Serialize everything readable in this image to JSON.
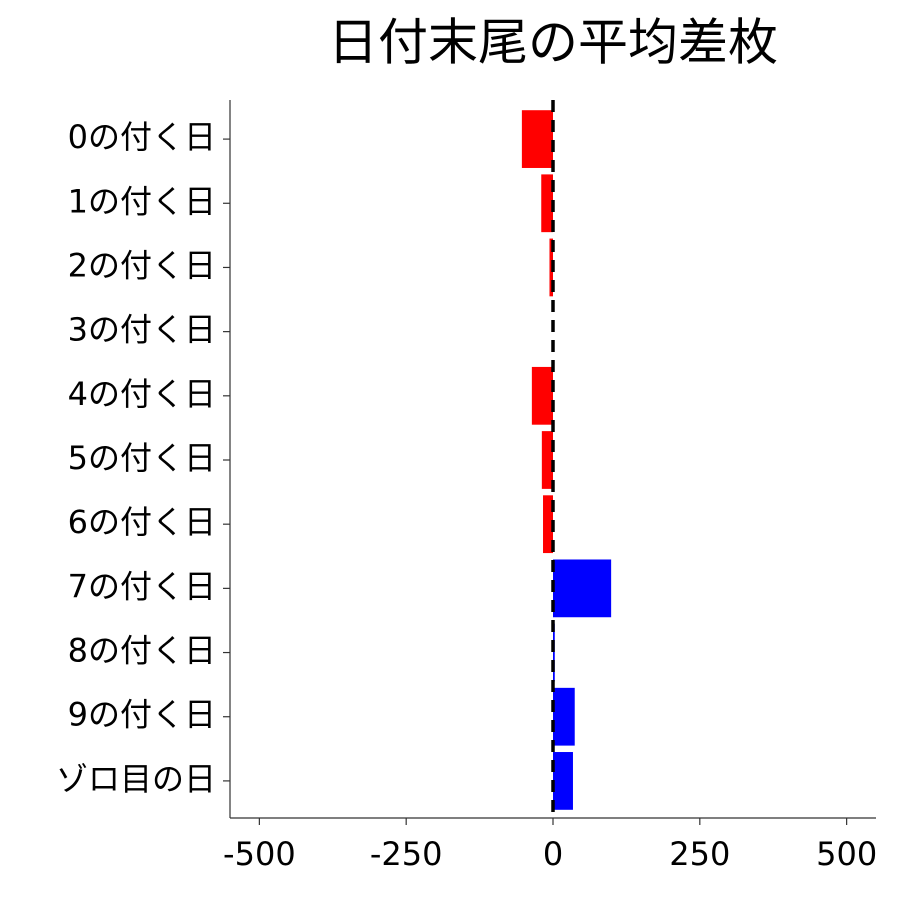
{
  "chart_data": {
    "type": "barh",
    "title": "日付末尾の平均差枚",
    "categories": [
      "0の付く日",
      "1の付く日",
      "2の付く日",
      "3の付く日",
      "4の付く日",
      "5の付く日",
      "6の付く日",
      "7の付く日",
      "8の付く日",
      "9の付く日",
      "ゾロ目の日"
    ],
    "values": [
      -53,
      -20,
      -6,
      0,
      -36,
      -19,
      -17,
      99,
      3,
      37,
      34
    ],
    "negative_color": "#ff0000",
    "positive_color": "#0000ff",
    "xlim": [
      -550,
      550
    ],
    "xticks": [
      -500,
      -250,
      0,
      250,
      500
    ],
    "reference_line": 0
  }
}
